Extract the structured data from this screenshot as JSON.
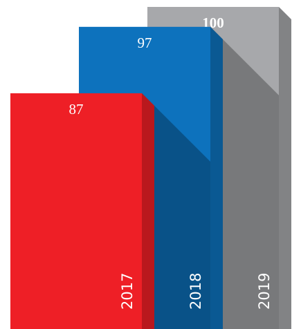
{
  "chart_data": {
    "type": "bar",
    "categories": [
      "2017",
      "2018",
      "2019"
    ],
    "values": [
      87,
      97,
      100
    ],
    "colors": [
      "#ee1f26",
      "#0d72bd",
      "#a7a8ab"
    ]
  }
}
